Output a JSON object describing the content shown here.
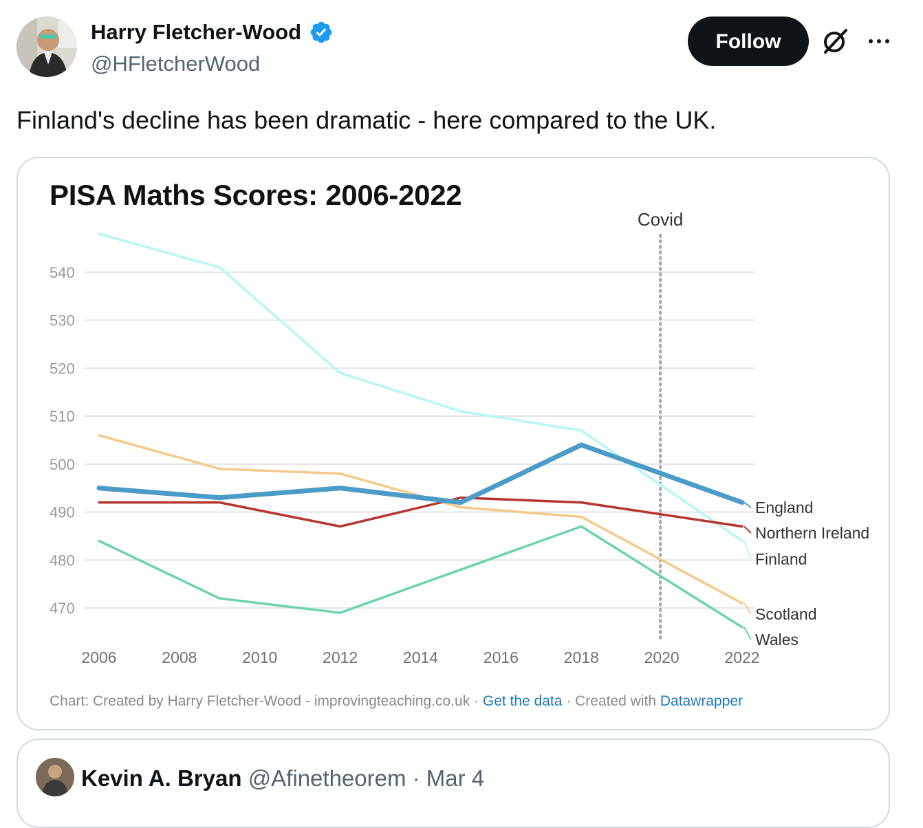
{
  "tweet": {
    "author_name": "Harry Fletcher-Wood",
    "author_handle": "@HFletcherWood",
    "follow_label": "Follow",
    "text": "Finland's decline has been dramatic - here compared to the UK.",
    "icons": {
      "verified": "verified-badge-icon",
      "grok": "grok-icon",
      "more": "more-icon"
    },
    "colors": {
      "verified": "#1d9bf0",
      "follow_bg": "#0f1419"
    }
  },
  "chart_data": {
    "type": "line",
    "title": "PISA Maths Scores: 2006-2022",
    "x": [
      2006,
      2009,
      2012,
      2015,
      2018,
      2022
    ],
    "x_ticks": [
      2006,
      2008,
      2010,
      2012,
      2014,
      2016,
      2018,
      2020,
      2022
    ],
    "y_ticks": [
      470,
      480,
      490,
      500,
      510,
      520,
      530,
      540
    ],
    "xlim": [
      2006,
      2022
    ],
    "ylim": [
      466,
      548
    ],
    "grid": true,
    "annotation": {
      "label": "Covid",
      "x": 2020
    },
    "series": [
      {
        "name": "Finland",
        "color": "#b8f5f7",
        "values": [
          548,
          541,
          519,
          511,
          507,
          484
        ]
      },
      {
        "name": "Scotland",
        "color": "#f4c98a",
        "values": [
          506,
          499,
          498,
          491,
          489,
          471
        ]
      },
      {
        "name": "Wales",
        "color": "#6dd3a8",
        "values": [
          484,
          472,
          469,
          478,
          487,
          466
        ]
      },
      {
        "name": "Northern  Ireland",
        "color": "#b5352f",
        "values": [
          492,
          492,
          487,
          493,
          492,
          487
        ]
      },
      {
        "name": "England",
        "color": "#4b9bc8",
        "values": [
          495,
          493,
          495,
          492,
          504,
          492
        ]
      }
    ],
    "footer": {
      "prefix": "Chart: Created by Harry Fletcher-Wood - improvingteaching.co.uk · ",
      "get_data": "Get the data",
      "middle": " · Created with ",
      "datawrapper": "Datawrapper"
    }
  },
  "quoted": {
    "author_name": "Kevin A. Bryan",
    "author_handle": "@Afinetheorem",
    "date": "· Mar 4"
  }
}
